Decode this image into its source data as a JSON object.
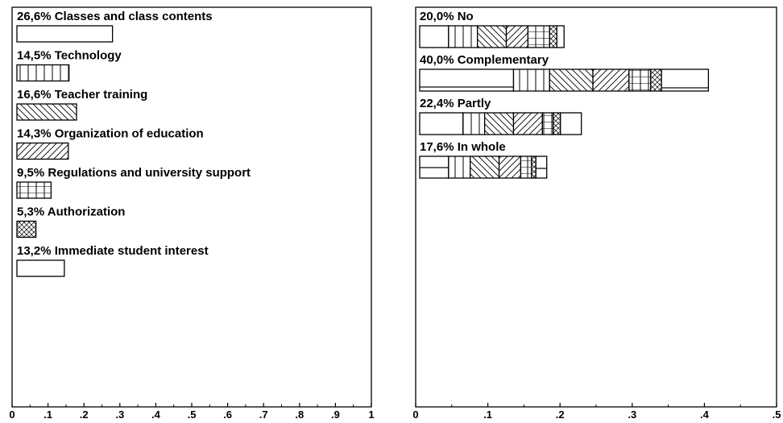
{
  "chart_data": [
    {
      "type": "bar",
      "orientation": "horizontal",
      "xlim": [
        0,
        1
      ],
      "x_ticks": [
        "0",
        ".1",
        ".2",
        ".3",
        ".4",
        ".5",
        ".6",
        ".7",
        ".8",
        ".9",
        "1"
      ],
      "bars": [
        {
          "label": "26,6% Classes and class contents",
          "value": 0.266,
          "pattern": "hlines"
        },
        {
          "label": "14,5% Technology",
          "value": 0.145,
          "pattern": "vlines"
        },
        {
          "label": "16,6% Teacher training",
          "value": 0.166,
          "pattern": "backslash"
        },
        {
          "label": "14,3% Organization of education",
          "value": 0.143,
          "pattern": "slash"
        },
        {
          "label": "9,5% Regulations and university support",
          "value": 0.095,
          "pattern": "grid"
        },
        {
          "label": "5,3% Authorization",
          "value": 0.053,
          "pattern": "crosshatch"
        },
        {
          "label": "13,2% Immediate student interest",
          "value": 0.132,
          "pattern": "hlines2"
        }
      ]
    },
    {
      "type": "bar",
      "orientation": "horizontal",
      "stacked": true,
      "xlim": [
        0,
        0.5
      ],
      "x_ticks": [
        "0",
        ".1",
        ".2",
        ".3",
        ".4",
        ".5"
      ],
      "segment_patterns": [
        "hlines",
        "vlines",
        "backslash",
        "slash",
        "grid",
        "crosshatch",
        "hlines2"
      ],
      "bars": [
        {
          "label": "20,0% No",
          "value": 0.2,
          "segments": [
            0.04,
            0.04,
            0.04,
            0.03,
            0.03,
            0.01,
            0.01
          ]
        },
        {
          "label": "40,0% Complementary",
          "value": 0.4,
          "segments": [
            0.13,
            0.05,
            0.06,
            0.05,
            0.03,
            0.015,
            0.065
          ]
        },
        {
          "label": "22,4% Partly",
          "value": 0.224,
          "segments": [
            0.06,
            0.03,
            0.04,
            0.04,
            0.015,
            0.01,
            0.029
          ]
        },
        {
          "label": "17,6% In whole",
          "value": 0.176,
          "segments": [
            0.04,
            0.03,
            0.04,
            0.03,
            0.015,
            0.006,
            0.015
          ]
        }
      ]
    }
  ]
}
